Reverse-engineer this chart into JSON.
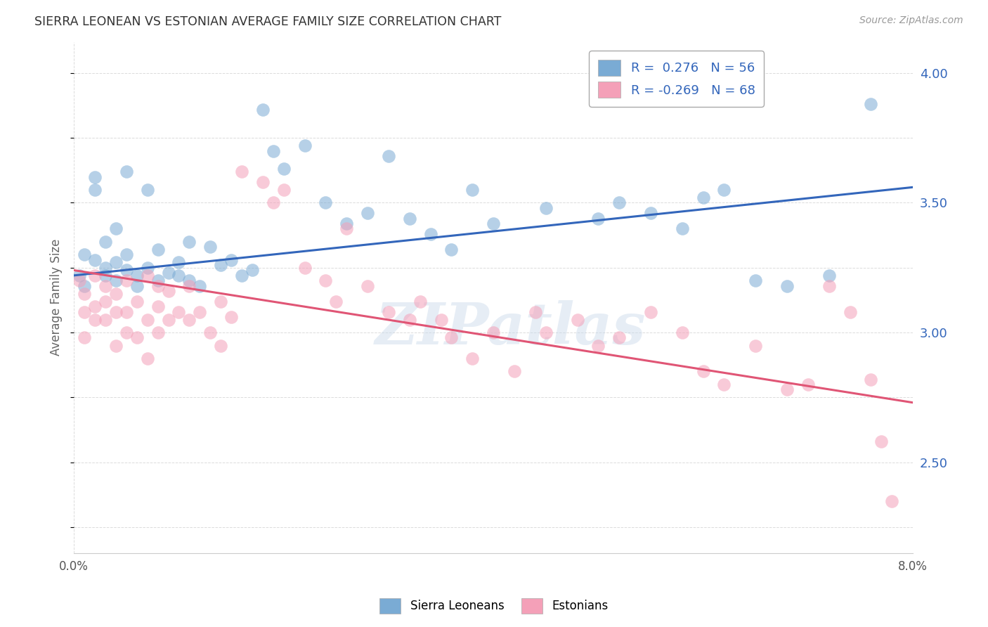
{
  "title": "SIERRA LEONEAN VS ESTONIAN AVERAGE FAMILY SIZE CORRELATION CHART",
  "source": "Source: ZipAtlas.com",
  "ylabel": "Average Family Size",
  "xmin": 0.0,
  "xmax": 0.08,
  "ymin": 2.15,
  "ymax": 4.12,
  "yticks_right": [
    2.5,
    3.0,
    3.5,
    4.0
  ],
  "blue_color": "#7aabd4",
  "pink_color": "#f4a0b8",
  "blue_line_color": "#3366bb",
  "pink_line_color": "#e05575",
  "background_color": "#ffffff",
  "grid_color": "#cccccc",
  "title_color": "#333333",
  "source_color": "#999999",
  "ylabel_color": "#666666",
  "blue_trend": [
    3.22,
    3.56
  ],
  "pink_trend": [
    3.24,
    2.73
  ],
  "sierra_leone_points": [
    [
      0.0005,
      3.22
    ],
    [
      0.001,
      3.3
    ],
    [
      0.001,
      3.18
    ],
    [
      0.002,
      3.28
    ],
    [
      0.002,
      3.6
    ],
    [
      0.002,
      3.55
    ],
    [
      0.003,
      3.22
    ],
    [
      0.003,
      3.35
    ],
    [
      0.003,
      3.25
    ],
    [
      0.004,
      3.4
    ],
    [
      0.004,
      3.27
    ],
    [
      0.004,
      3.2
    ],
    [
      0.005,
      3.62
    ],
    [
      0.005,
      3.24
    ],
    [
      0.005,
      3.3
    ],
    [
      0.006,
      3.22
    ],
    [
      0.006,
      3.18
    ],
    [
      0.007,
      3.55
    ],
    [
      0.007,
      3.25
    ],
    [
      0.008,
      3.2
    ],
    [
      0.008,
      3.32
    ],
    [
      0.009,
      3.23
    ],
    [
      0.01,
      3.27
    ],
    [
      0.01,
      3.22
    ],
    [
      0.011,
      3.35
    ],
    [
      0.011,
      3.2
    ],
    [
      0.012,
      3.18
    ],
    [
      0.013,
      3.33
    ],
    [
      0.014,
      3.26
    ],
    [
      0.015,
      3.28
    ],
    [
      0.016,
      3.22
    ],
    [
      0.017,
      3.24
    ],
    [
      0.018,
      3.86
    ],
    [
      0.019,
      3.7
    ],
    [
      0.02,
      3.63
    ],
    [
      0.022,
      3.72
    ],
    [
      0.024,
      3.5
    ],
    [
      0.026,
      3.42
    ],
    [
      0.028,
      3.46
    ],
    [
      0.03,
      3.68
    ],
    [
      0.032,
      3.44
    ],
    [
      0.034,
      3.38
    ],
    [
      0.036,
      3.32
    ],
    [
      0.038,
      3.55
    ],
    [
      0.04,
      3.42
    ],
    [
      0.045,
      3.48
    ],
    [
      0.05,
      3.44
    ],
    [
      0.052,
      3.5
    ],
    [
      0.055,
      3.46
    ],
    [
      0.058,
      3.4
    ],
    [
      0.06,
      3.52
    ],
    [
      0.062,
      3.55
    ],
    [
      0.065,
      3.2
    ],
    [
      0.068,
      3.18
    ],
    [
      0.072,
      3.22
    ],
    [
      0.076,
      3.88
    ]
  ],
  "estonian_points": [
    [
      0.0005,
      3.2
    ],
    [
      0.001,
      3.15
    ],
    [
      0.001,
      2.98
    ],
    [
      0.001,
      3.08
    ],
    [
      0.002,
      3.22
    ],
    [
      0.002,
      3.1
    ],
    [
      0.002,
      3.05
    ],
    [
      0.003,
      3.18
    ],
    [
      0.003,
      3.12
    ],
    [
      0.003,
      3.05
    ],
    [
      0.004,
      3.15
    ],
    [
      0.004,
      3.08
    ],
    [
      0.004,
      2.95
    ],
    [
      0.005,
      3.2
    ],
    [
      0.005,
      3.08
    ],
    [
      0.005,
      3.0
    ],
    [
      0.006,
      3.12
    ],
    [
      0.006,
      2.98
    ],
    [
      0.007,
      3.22
    ],
    [
      0.007,
      3.05
    ],
    [
      0.007,
      2.9
    ],
    [
      0.008,
      3.18
    ],
    [
      0.008,
      3.1
    ],
    [
      0.008,
      3.0
    ],
    [
      0.009,
      3.16
    ],
    [
      0.009,
      3.05
    ],
    [
      0.01,
      3.08
    ],
    [
      0.011,
      3.18
    ],
    [
      0.011,
      3.05
    ],
    [
      0.012,
      3.08
    ],
    [
      0.013,
      3.0
    ],
    [
      0.014,
      3.12
    ],
    [
      0.014,
      2.95
    ],
    [
      0.015,
      3.06
    ],
    [
      0.016,
      3.62
    ],
    [
      0.018,
      3.58
    ],
    [
      0.019,
      3.5
    ],
    [
      0.02,
      3.55
    ],
    [
      0.022,
      3.25
    ],
    [
      0.024,
      3.2
    ],
    [
      0.025,
      3.12
    ],
    [
      0.026,
      3.4
    ],
    [
      0.028,
      3.18
    ],
    [
      0.03,
      3.08
    ],
    [
      0.032,
      3.05
    ],
    [
      0.033,
      3.12
    ],
    [
      0.035,
      3.05
    ],
    [
      0.036,
      2.98
    ],
    [
      0.038,
      2.9
    ],
    [
      0.04,
      3.0
    ],
    [
      0.042,
      2.85
    ],
    [
      0.044,
      3.08
    ],
    [
      0.045,
      3.0
    ],
    [
      0.048,
      3.05
    ],
    [
      0.05,
      2.95
    ],
    [
      0.052,
      2.98
    ],
    [
      0.055,
      3.08
    ],
    [
      0.058,
      3.0
    ],
    [
      0.06,
      2.85
    ],
    [
      0.062,
      2.8
    ],
    [
      0.065,
      2.95
    ],
    [
      0.068,
      2.78
    ],
    [
      0.07,
      2.8
    ],
    [
      0.072,
      3.18
    ],
    [
      0.074,
      3.08
    ],
    [
      0.076,
      2.82
    ],
    [
      0.077,
      2.58
    ],
    [
      0.078,
      2.35
    ]
  ]
}
